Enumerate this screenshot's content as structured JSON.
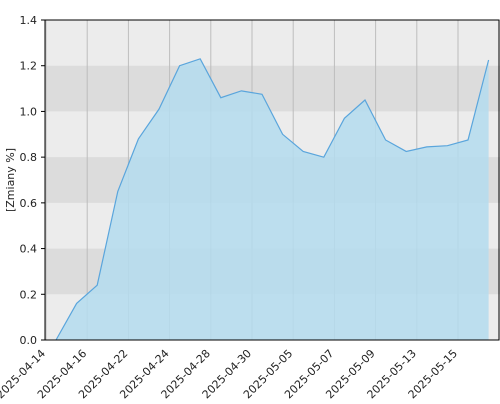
{
  "chart_data": {
    "type": "area",
    "y_label": "[Zmiany %]",
    "categories": [
      "2025-04-14",
      null,
      "2025-04-16",
      null,
      "2025-04-22",
      null,
      "2025-04-24",
      null,
      "2025-04-28",
      null,
      "2025-04-30",
      null,
      "2025-05-05",
      null,
      "2025-05-07",
      null,
      "2025-05-09",
      null,
      "2025-05-13",
      null,
      "2025-05-15",
      null
    ],
    "values": [
      0.0,
      0.16,
      0.24,
      0.65,
      0.88,
      1.01,
      1.2,
      1.23,
      1.06,
      1.09,
      1.075,
      0.9,
      0.825,
      0.8,
      0.97,
      1.05,
      0.875,
      0.825,
      0.845,
      0.85,
      0.875,
      1.225
    ],
    "color": "#5aa5dc",
    "fill": "#b4dcee",
    "ylim": [
      0,
      1.4
    ],
    "yticks": [
      {
        "value": 0,
        "label": "0.0"
      },
      0.2,
      0.4,
      0.6,
      0.8,
      {
        "value": 1,
        "label": "1.0"
      },
      1.2,
      1.4
    ],
    "grid": true
  }
}
